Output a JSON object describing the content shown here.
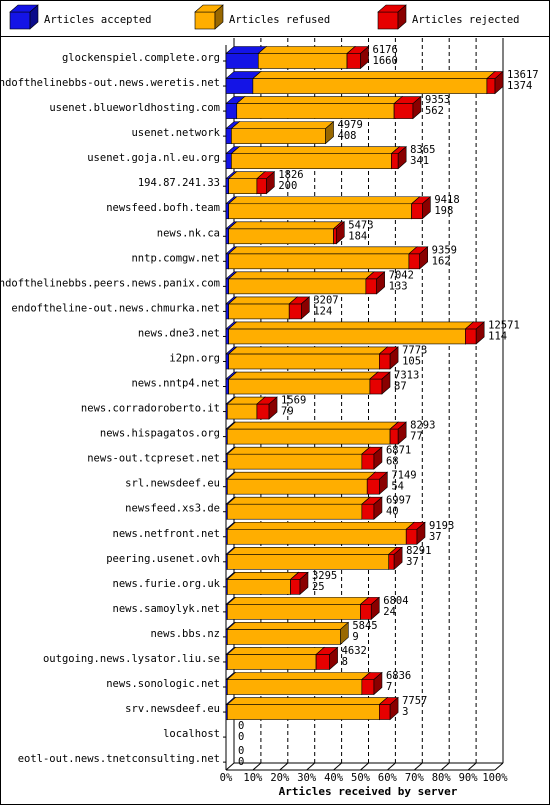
{
  "chart_data": {
    "type": "bar",
    "orientation": "horizontal",
    "stacked": true,
    "xlabel": "Articles received by server",
    "xlim": [
      0,
      100
    ],
    "xticks": [
      {
        "value": 0,
        "label": "0%"
      },
      {
        "value": 10,
        "label": "10%"
      },
      {
        "value": 20,
        "label": "20%"
      },
      {
        "value": 30,
        "label": "30%"
      },
      {
        "value": 40,
        "label": "40%"
      },
      {
        "value": 50,
        "label": "50%"
      },
      {
        "value": 60,
        "label": "60%"
      },
      {
        "value": 70,
        "label": "70%"
      },
      {
        "value": 80,
        "label": "80%"
      },
      {
        "value": 90,
        "label": "90%"
      },
      {
        "value": 100,
        "label": "100%"
      }
    ],
    "grid": true,
    "legend": "top",
    "categories": [
      "glockenspiel.complete.org",
      "endofthelinebbs-out.news.weretis.net",
      "usenet.blueworldhosting.com",
      "usenet.network",
      "usenet.goja.nl.eu.org",
      "194.87.241.33",
      "newsfeed.bofh.team",
      "news.nk.ca",
      "nntp.comgw.net",
      "endofthelinebbs.peers.news.panix.com",
      "endoftheline-out.news.chmurka.net",
      "news.dne3.net",
      "i2pn.org",
      "news.nntp4.net",
      "news.corradoroberto.it",
      "news.hispagatos.org",
      "news-out.tcpreset.net",
      "srl.newsdeef.eu",
      "newsfeed.xs3.de",
      "news.netfront.net",
      "peering.usenet.ovh",
      "news.furie.org.uk",
      "news.samoylyk.net",
      "news.bbs.nz",
      "outgoing.news.lysator.liu.se",
      "news.sonologic.net",
      "srv.newsdeef.eu",
      "localhost",
      "eotl-out.news.tnetconsulting.net"
    ],
    "series": [
      {
        "name": "Articles accepted",
        "color": "#1414e6",
        "values": [
          12,
          10,
          4,
          2,
          2,
          1,
          1,
          1,
          1,
          1,
          1,
          1,
          1,
          1,
          0.5,
          0.5,
          0.5,
          0.5,
          0.5,
          0.5,
          0.5,
          0.5,
          0.5,
          0.5,
          0.5,
          0.5,
          0.5,
          0,
          0
        ]
      },
      {
        "name": "Articles refused",
        "color": "#ffae00",
        "values": [
          33,
          87,
          58.5,
          35,
          59.5,
          10.5,
          68,
          39,
          67,
          51,
          22.5,
          88,
          56,
          52.5,
          11,
          60.5,
          50,
          52,
          50,
          66.5,
          60,
          23.5,
          49.5,
          42,
          33,
          50,
          56.5,
          0,
          0
        ]
      },
      {
        "name": "Articles rejected",
        "color": "#e60000",
        "values": [
          5,
          3,
          7,
          0,
          2.5,
          3.5,
          4,
          1,
          4,
          4,
          4.5,
          4,
          4,
          4.5,
          4.5,
          3,
          4.5,
          4.5,
          4.5,
          4,
          2,
          3.5,
          4,
          0,
          5,
          4.5,
          4,
          0,
          0
        ]
      }
    ],
    "bar_labels": {
      "total": [
        6176,
        13617,
        9353,
        4979,
        8365,
        1826,
        9418,
        5473,
        9359,
        7042,
        3207,
        12571,
        7773,
        7313,
        1569,
        8293,
        6871,
        7149,
        6997,
        9193,
        8291,
        3295,
        6804,
        5845,
        4632,
        6836,
        7757,
        0,
        0
      ],
      "accepted": [
        1660,
        1374,
        562,
        408,
        341,
        200,
        198,
        184,
        162,
        133,
        124,
        114,
        105,
        87,
        79,
        77,
        68,
        54,
        40,
        37,
        37,
        25,
        24,
        9,
        8,
        7,
        3,
        0,
        0
      ]
    }
  }
}
